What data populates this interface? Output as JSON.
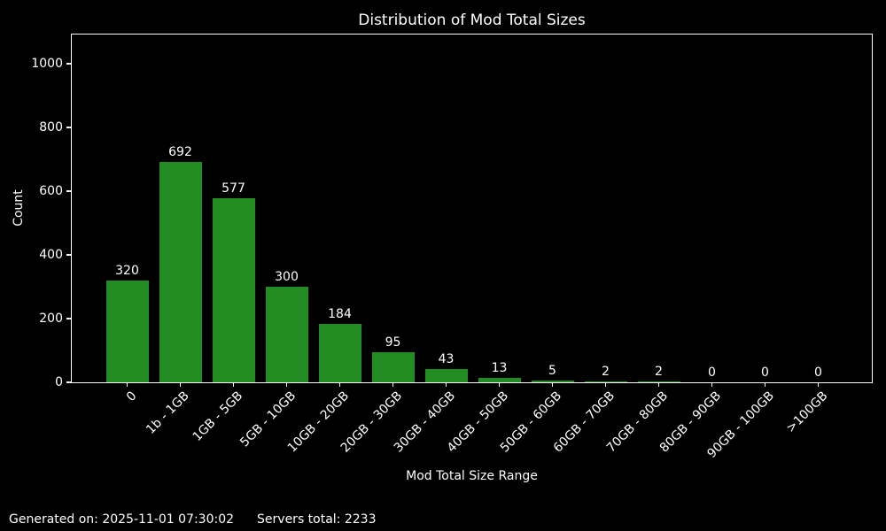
{
  "footer": {
    "generated": "Generated on: 2025-11-01 07:30:02",
    "servers_total": "Servers total: 2233"
  },
  "colors": {
    "background": "#000000",
    "text": "#ffffff",
    "bar": "#228B22",
    "axis": "#ffffff"
  },
  "chart_data": {
    "type": "bar",
    "title": "Distribution of Mod Total Sizes",
    "xlabel": "Mod Total Size Range",
    "ylabel": "Count",
    "categories": [
      "0",
      "1b - 1GB",
      "1GB - 5GB",
      "5GB - 10GB",
      "10GB - 20GB",
      "20GB - 30GB",
      "30GB - 40GB",
      "40GB - 50GB",
      "50GB - 60GB",
      "60GB - 70GB",
      "70GB - 80GB",
      "80GB - 90GB",
      "90GB - 100GB",
      ">100GB"
    ],
    "values": [
      320,
      692,
      577,
      300,
      184,
      95,
      43,
      13,
      5,
      2,
      2,
      0,
      0,
      0
    ],
    "yticks": [
      0,
      200,
      400,
      600,
      800,
      1000
    ],
    "ylim": [
      0,
      1092
    ],
    "bar_color": "#228B22",
    "bar_labels": true,
    "grid": false,
    "legend": null,
    "x_tick_rotation": 45
  }
}
